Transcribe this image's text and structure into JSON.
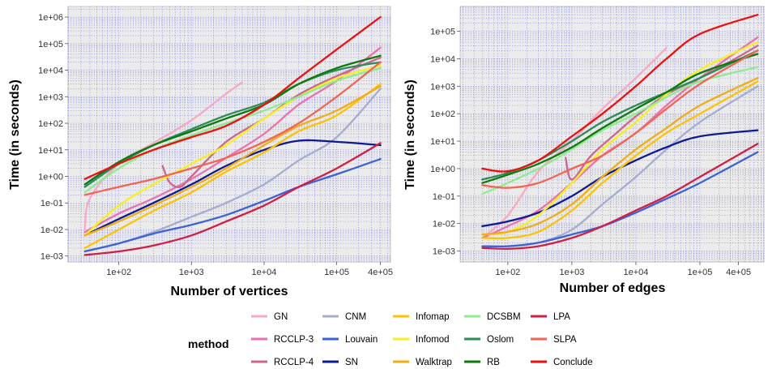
{
  "legend": {
    "title": "method",
    "columns": [
      [
        "GN",
        "RCCLP-3",
        "RCCLP-4"
      ],
      [
        "CNM",
        "Louvain",
        "SN"
      ],
      [
        "Infomap",
        "Infomod",
        "Walktrap"
      ],
      [
        "DCSBM",
        "Oslom",
        "RB"
      ],
      [
        "LPA",
        "SLPA",
        "Conclude"
      ]
    ]
  },
  "colors": {
    "GN": "#f7a9c4",
    "RCCLP-3": "#ee6fae",
    "RCCLP-4": "#cc6690",
    "CNM": "#a4adcf",
    "Louvain": "#3c63d6",
    "SN": "#0f1991",
    "Infomap": "#ffc200",
    "Infomod": "#f7f020",
    "Walktrap": "#f1ad14",
    "DCSBM": "#90ea90",
    "Oslom": "#2e8b57",
    "RB": "#0c7a0c",
    "LPA": "#d01f46",
    "SLPA": "#f26454",
    "Conclude": "#ec1010"
  },
  "chart_data": [
    {
      "type": "line",
      "title": "",
      "xlabel": "Number of vertices",
      "ylabel": "Time (in seconds)",
      "xscale": "log",
      "yscale": "log",
      "xlim": [
        20,
        550000
      ],
      "ylim": [
        0.0006,
        2500000
      ],
      "grid": true,
      "xticks": [
        100,
        1000,
        10000,
        100000,
        400000
      ],
      "xtick_labels": [
        "1e+02",
        "1e+03",
        "1e+04",
        "1e+05",
        "4e+05"
      ],
      "yticks": [
        0.001,
        0.01,
        0.1,
        1,
        10,
        100,
        1000,
        10000,
        100000,
        1000000
      ],
      "ytick_labels": [
        "1e-03",
        "1e-02",
        "1e-01",
        "1e+00",
        "1e+01",
        "1e+02",
        "1e+03",
        "1e+04",
        "1e+05",
        "1e+06"
      ],
      "series": [
        {
          "name": "GN",
          "x": [
            34,
            40,
            100,
            300,
            1000,
            3000,
            5000
          ],
          "y": [
            0.01,
            0.15,
            3,
            18,
            130,
            1300,
            3500
          ]
        },
        {
          "name": "RCCLP-3",
          "x": [
            34,
            100,
            300,
            1000,
            3000,
            10000,
            30000,
            100000,
            400000
          ],
          "y": [
            0.008,
            0.04,
            0.15,
            0.8,
            5,
            40,
            500,
            4000,
            70000
          ]
        },
        {
          "name": "RCCLP-4",
          "x": [
            400,
            500,
            700,
            1000,
            3000,
            10000,
            30000,
            100000,
            400000
          ],
          "y": [
            2.5,
            0.6,
            0.4,
            1,
            20,
            150,
            1200,
            6000,
            30000
          ]
        },
        {
          "name": "CNM",
          "x": [
            34,
            100,
            300,
            1000,
            3000,
            10000,
            30000,
            100000,
            400000
          ],
          "y": [
            0.0015,
            0.003,
            0.008,
            0.03,
            0.1,
            0.5,
            4,
            30,
            2000
          ]
        },
        {
          "name": "Louvain",
          "x": [
            34,
            100,
            300,
            1000,
            3000,
            10000,
            30000,
            100000,
            400000
          ],
          "y": [
            0.0015,
            0.003,
            0.007,
            0.015,
            0.035,
            0.12,
            0.4,
            1.2,
            4.5
          ]
        },
        {
          "name": "SN",
          "x": [
            34,
            100,
            300,
            1000,
            3000,
            10000,
            30000,
            100000,
            400000
          ],
          "y": [
            0.006,
            0.025,
            0.1,
            0.5,
            2.5,
            10,
            22,
            20,
            15
          ]
        },
        {
          "name": "Infomap",
          "x": [
            34,
            100,
            300,
            1000,
            3000,
            10000,
            30000,
            100000,
            400000
          ],
          "y": [
            0.002,
            0.01,
            0.05,
            0.25,
            1.5,
            8,
            50,
            200,
            3000
          ]
        },
        {
          "name": "Infomod",
          "x": [
            34,
            100,
            300,
            1000,
            3000,
            10000,
            30000,
            100000,
            400000
          ],
          "y": [
            0.006,
            0.08,
            0.5,
            3,
            15,
            150,
            1000,
            5000,
            15000
          ]
        },
        {
          "name": "Walktrap",
          "x": [
            34,
            100,
            300,
            1000,
            3000,
            10000,
            30000,
            100000,
            400000
          ],
          "y": [
            0.006,
            0.02,
            0.08,
            0.4,
            2,
            15,
            80,
            300,
            2500
          ]
        },
        {
          "name": "DCSBM",
          "x": [
            34,
            100,
            300,
            1000,
            3000,
            10000,
            30000,
            100000,
            400000
          ],
          "y": [
            0.25,
            2,
            10,
            35,
            100,
            300,
            1000,
            4000,
            12000
          ]
        },
        {
          "name": "Oslom",
          "x": [
            34,
            100,
            300,
            1000,
            3000,
            10000,
            30000,
            100000,
            400000
          ],
          "y": [
            0.4,
            3,
            15,
            60,
            200,
            600,
            3000,
            10000,
            20000
          ]
        },
        {
          "name": "RB",
          "x": [
            34,
            100,
            300,
            1000,
            3000,
            10000,
            30000,
            100000,
            400000
          ],
          "y": [
            0.5,
            3.5,
            15,
            50,
            150,
            500,
            3000,
            12000,
            35000
          ]
        },
        {
          "name": "LPA",
          "x": [
            34,
            100,
            300,
            1000,
            3000,
            10000,
            30000,
            100000,
            400000
          ],
          "y": [
            0.0011,
            0.0015,
            0.0025,
            0.006,
            0.02,
            0.08,
            0.4,
            2,
            18
          ]
        },
        {
          "name": "SLPA",
          "x": [
            34,
            100,
            300,
            1000,
            3000,
            10000,
            30000,
            100000,
            400000
          ],
          "y": [
            0.2,
            0.4,
            0.8,
            2,
            5,
            20,
            100,
            1000,
            20000
          ]
        },
        {
          "name": "Conclude",
          "x": [
            34,
            100,
            300,
            1000,
            3000,
            10000,
            30000,
            100000,
            400000
          ],
          "y": [
            0.8,
            3,
            10,
            30,
            80,
            500,
            5000,
            60000,
            1000000
          ]
        }
      ]
    },
    {
      "type": "line",
      "title": "",
      "xlabel": "Number of edges",
      "ylabel": "Time (in seconds)",
      "xscale": "log",
      "yscale": "log",
      "xlim": [
        18,
        1000000
      ],
      "ylim": [
        0.0004,
        800000
      ],
      "grid": true,
      "xticks": [
        100,
        1000,
        10000,
        100000,
        400000
      ],
      "xtick_labels": [
        "1e+02",
        "1e+03",
        "1e+04",
        "1e+05",
        "4e+05"
      ],
      "yticks": [
        0.001,
        0.01,
        0.1,
        1,
        10,
        100,
        1000,
        10000,
        100000
      ],
      "ytick_labels": [
        "1e-03",
        "1e-02",
        "1e-01",
        "1e+00",
        "1e+01",
        "1e+02",
        "1e+03",
        "1e+04",
        "1e+05"
      ],
      "series": [
        {
          "name": "GN",
          "x": [
            40,
            100,
            300,
            1000,
            3000,
            10000,
            30000
          ],
          "y": [
            0.003,
            0.02,
            0.8,
            10,
            150,
            2000,
            25000
          ]
        },
        {
          "name": "RCCLP-3",
          "x": [
            40,
            100,
            300,
            1000,
            3000,
            10000,
            30000,
            100000,
            800000
          ],
          "y": [
            0.003,
            0.008,
            0.03,
            0.3,
            3,
            20,
            200,
            2000,
            60000
          ]
        },
        {
          "name": "RCCLP-4",
          "x": [
            800,
            1000,
            2000,
            5000,
            10000,
            30000,
            100000,
            300000,
            800000
          ],
          "y": [
            2.5,
            0.4,
            3,
            20,
            80,
            500,
            2000,
            8000,
            30000
          ]
        },
        {
          "name": "CNM",
          "x": [
            40,
            100,
            300,
            1000,
            3000,
            10000,
            30000,
            100000,
            800000
          ],
          "y": [
            0.0015,
            0.0015,
            0.002,
            0.006,
            0.05,
            0.5,
            5,
            50,
            1000
          ]
        },
        {
          "name": "Louvain",
          "x": [
            40,
            100,
            300,
            1000,
            3000,
            10000,
            30000,
            100000,
            800000
          ],
          "y": [
            0.0015,
            0.0015,
            0.002,
            0.004,
            0.008,
            0.025,
            0.08,
            0.3,
            4
          ]
        },
        {
          "name": "SN",
          "x": [
            40,
            100,
            300,
            1000,
            3000,
            10000,
            30000,
            100000,
            800000
          ],
          "y": [
            0.008,
            0.012,
            0.025,
            0.1,
            0.5,
            2,
            6,
            15,
            25
          ]
        },
        {
          "name": "Infomap",
          "x": [
            40,
            100,
            300,
            1000,
            3000,
            10000,
            30000,
            100000,
            800000
          ],
          "y": [
            0.003,
            0.003,
            0.005,
            0.03,
            0.3,
            3,
            20,
            100,
            1500
          ]
        },
        {
          "name": "Infomod",
          "x": [
            40,
            100,
            300,
            1000,
            3000,
            10000,
            30000,
            100000,
            800000
          ],
          "y": [
            0.004,
            0.005,
            0.02,
            0.3,
            5,
            50,
            500,
            4000,
            40000
          ]
        },
        {
          "name": "Walktrap",
          "x": [
            40,
            100,
            300,
            1000,
            3000,
            10000,
            30000,
            100000,
            800000
          ],
          "y": [
            0.004,
            0.005,
            0.01,
            0.05,
            0.5,
            5,
            30,
            200,
            2000
          ]
        },
        {
          "name": "DCSBM",
          "x": [
            40,
            100,
            300,
            1000,
            3000,
            10000,
            30000,
            100000,
            800000
          ],
          "y": [
            0.12,
            0.3,
            1,
            5,
            25,
            100,
            400,
            1500,
            5000
          ]
        },
        {
          "name": "Oslom",
          "x": [
            40,
            100,
            300,
            1000,
            3000,
            10000,
            30000,
            100000,
            800000
          ],
          "y": [
            0.4,
            0.7,
            2,
            10,
            50,
            200,
            600,
            2000,
            20000
          ]
        },
        {
          "name": "RB",
          "x": [
            40,
            100,
            300,
            1000,
            3000,
            10000,
            30000,
            100000,
            800000
          ],
          "y": [
            0.3,
            0.6,
            1.5,
            6,
            30,
            150,
            600,
            3000,
            15000
          ]
        },
        {
          "name": "LPA",
          "x": [
            40,
            100,
            300,
            1000,
            3000,
            10000,
            30000,
            100000,
            800000
          ],
          "y": [
            0.0013,
            0.0012,
            0.0015,
            0.003,
            0.008,
            0.03,
            0.1,
            0.5,
            8
          ]
        },
        {
          "name": "SLPA",
          "x": [
            40,
            100,
            300,
            1000,
            3000,
            10000,
            30000,
            100000,
            800000
          ],
          "y": [
            0.25,
            0.2,
            0.3,
            1,
            3,
            20,
            150,
            1200,
            20000
          ]
        },
        {
          "name": "Conclude",
          "x": [
            40,
            100,
            300,
            1000,
            3000,
            10000,
            30000,
            100000,
            800000
          ],
          "y": [
            1,
            0.8,
            2,
            15,
            100,
            1000,
            10000,
            80000,
            400000
          ]
        }
      ]
    }
  ]
}
